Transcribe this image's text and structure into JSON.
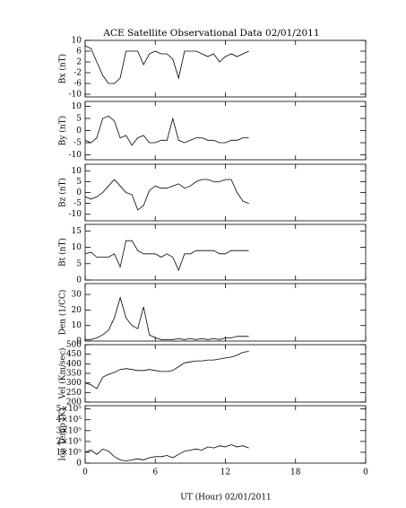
{
  "title": "ACE Satellite Observational Data   02/01/2011",
  "xlabel": "UT (Hour)   02/01/2011",
  "chart_data": [
    {
      "type": "line",
      "ylabel": "Bx (nT)",
      "ylim": [
        -11,
        10
      ],
      "yticks": [
        10,
        6,
        2,
        -2,
        -6,
        -10
      ],
      "color": "#000000",
      "x": [
        0,
        0.5,
        1,
        1.5,
        2,
        2.5,
        3,
        3.5,
        4,
        4.5,
        5,
        5.5,
        6,
        6.5,
        7,
        7.5,
        8,
        8.5,
        9,
        9.5,
        10,
        10.5,
        11,
        11.5,
        12,
        12.5,
        13,
        13.5,
        14
      ],
      "values": [
        8,
        7,
        2,
        -3,
        -6,
        -6,
        -4,
        6,
        6,
        6,
        1,
        5,
        6,
        5,
        5,
        3,
        -4,
        6,
        6,
        6,
        5,
        4,
        5,
        2,
        4,
        5,
        4,
        5,
        6
      ]
    },
    {
      "type": "line",
      "ylabel": "By (nT)",
      "ylim": [
        -12,
        12
      ],
      "yticks": [
        10,
        5,
        0,
        -5,
        -10
      ],
      "color": "#000000",
      "x": [
        0,
        0.5,
        1,
        1.5,
        2,
        2.5,
        3,
        3.5,
        4,
        4.5,
        5,
        5.5,
        6,
        6.5,
        7,
        7.5,
        8,
        8.5,
        9,
        9.5,
        10,
        10.5,
        11,
        11.5,
        12,
        12.5,
        13,
        13.5,
        14
      ],
      "values": [
        -4,
        -5,
        -3,
        5,
        6,
        4,
        -3,
        -2,
        -6,
        -3,
        -2,
        -5,
        -5,
        -4,
        -4,
        5,
        -4,
        -5,
        -4,
        -3,
        -3,
        -4,
        -4,
        -5,
        -5,
        -4,
        -4,
        -3,
        -3
      ]
    },
    {
      "type": "line",
      "ylabel": "Bz (nT)",
      "ylim": [
        -13,
        13
      ],
      "yticks": [
        10,
        5,
        0,
        -5,
        -10
      ],
      "color": "#000000",
      "x": [
        0,
        0.5,
        1,
        1.5,
        2,
        2.5,
        3,
        3.5,
        4,
        4.5,
        5,
        5.5,
        6,
        6.5,
        7,
        7.5,
        8,
        8.5,
        9,
        9.5,
        10,
        10.5,
        11,
        11.5,
        12,
        12.5,
        13,
        13.5,
        14
      ],
      "values": [
        -2,
        -3,
        -2,
        0,
        3,
        6,
        3,
        0,
        -1,
        -8,
        -6,
        1,
        3,
        2,
        2,
        3,
        4,
        2,
        3,
        5,
        6,
        6,
        5,
        5,
        6,
        6,
        0,
        -4,
        -5
      ]
    },
    {
      "type": "line",
      "ylabel": "Bt (nT)",
      "ylim": [
        0,
        17
      ],
      "yticks": [
        0,
        5,
        10,
        15
      ],
      "color": "#000000",
      "x": [
        0,
        0.5,
        1,
        1.5,
        2,
        2.5,
        3,
        3.5,
        4,
        4.5,
        5,
        5.5,
        6,
        6.5,
        7,
        7.5,
        8,
        8.5,
        9,
        9.5,
        10,
        10.5,
        11,
        11.5,
        12,
        12.5,
        13,
        13.5,
        14
      ],
      "values": [
        8,
        8.5,
        7,
        7,
        7,
        8,
        4,
        12,
        12,
        9,
        8,
        8,
        8,
        7,
        8,
        7,
        3,
        8,
        8,
        9,
        9,
        9,
        9,
        8,
        8,
        9,
        9,
        9,
        9
      ]
    },
    {
      "type": "line",
      "ylabel": "Den (1/CC)",
      "ylim": [
        0,
        37
      ],
      "yticks": [
        0,
        10,
        20,
        30
      ],
      "color": "#000000",
      "x": [
        0,
        0.5,
        1,
        1.5,
        2,
        2.5,
        3,
        3.5,
        4,
        4.5,
        5,
        5.5,
        6,
        6.5,
        7,
        7.5,
        8,
        8.5,
        9,
        9.5,
        10,
        10.5,
        11,
        11.5,
        12,
        12.5,
        13,
        13.5,
        14
      ],
      "values": [
        1,
        1,
        2,
        4,
        7,
        15,
        28,
        15,
        10,
        8,
        22,
        4,
        2,
        1,
        1,
        1,
        1.5,
        1,
        1.5,
        1,
        1.5,
        1,
        1.5,
        1,
        2,
        2,
        3,
        3,
        3
      ]
    },
    {
      "type": "line",
      "ylabel": "Vel (Km/sec)",
      "ylim": [
        200,
        500
      ],
      "yticks": [
        200,
        250,
        300,
        350,
        400,
        450,
        500
      ],
      "color": "#000000",
      "x": [
        0,
        0.5,
        1,
        1.5,
        2,
        2.5,
        3,
        3.5,
        4,
        4.5,
        5,
        5.5,
        6,
        6.5,
        7,
        7.5,
        8,
        8.5,
        9,
        9.5,
        10,
        10.5,
        11,
        11.5,
        12,
        12.5,
        13,
        13.5,
        14
      ],
      "values": [
        300,
        290,
        270,
        330,
        345,
        355,
        370,
        375,
        370,
        365,
        365,
        370,
        365,
        360,
        360,
        365,
        385,
        405,
        410,
        415,
        415,
        420,
        420,
        425,
        430,
        435,
        445,
        460,
        465
      ]
    },
    {
      "type": "line",
      "ylabel": "Ion Temp (K)",
      "ylim": [
        0,
        530000
      ],
      "yticks": [
        0,
        {
          "value": 100000,
          "label": "1×10⁵"
        },
        {
          "value": 200000,
          "label": "2×10⁵"
        },
        {
          "value": 300000,
          "label": "3×10⁵"
        },
        {
          "value": 400000,
          "label": "4×10⁵"
        },
        {
          "value": 500000,
          "label": "5×10⁵"
        }
      ],
      "color": "#000000",
      "xlim": [
        0,
        24
      ],
      "xticks": [
        0,
        6,
        12,
        18,
        {
          "value": 24,
          "label": "0"
        }
      ],
      "x": [
        0,
        0.5,
        1,
        1.5,
        2,
        2.5,
        3,
        3.5,
        4,
        4.5,
        5,
        5.5,
        6,
        6.5,
        7,
        7.5,
        8,
        8.5,
        9,
        9.5,
        10,
        10.5,
        11,
        11.5,
        12,
        12.5,
        13,
        13.5,
        14
      ],
      "values": [
        100000,
        120000,
        80000,
        130000,
        110000,
        60000,
        30000,
        20000,
        30000,
        40000,
        30000,
        50000,
        60000,
        60000,
        70000,
        50000,
        80000,
        110000,
        120000,
        130000,
        120000,
        150000,
        140000,
        160000,
        150000,
        170000,
        150000,
        160000,
        140000
      ]
    }
  ]
}
